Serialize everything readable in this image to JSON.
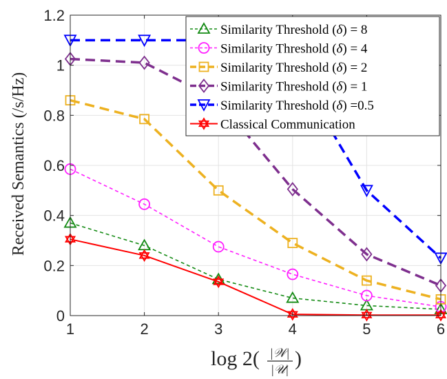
{
  "chart_data": {
    "type": "line",
    "title": "",
    "xlabel": "log 2(|𝒲|/|𝒰|)",
    "xlabel_parts": {
      "prefix": "log 2(",
      "numerator": "|𝒲|",
      "denominator": "|𝒰|",
      "suffix": ")"
    },
    "ylabel": "Received Semantics (/s/Hz)",
    "xlim": [
      1,
      6
    ],
    "ylim": [
      0,
      1.2
    ],
    "xticks": [
      "1",
      "2",
      "3",
      "4",
      "5",
      "6"
    ],
    "yticks": [
      "0",
      "0.2",
      "0.4",
      "0.6",
      "0.8",
      "1",
      "1.2"
    ],
    "grid": true,
    "legend_position": "top-right",
    "x": [
      1,
      2,
      3,
      4,
      5,
      6
    ],
    "series": [
      {
        "name": "Similarity Threshold (δ) = 8",
        "label_main": "Similarity Threshold (",
        "label_sym": "δ",
        "label_rest": ") = 8",
        "color": "#138a13",
        "marker": "triangle-up",
        "dash": "5,4",
        "width": 1.6,
        "values": [
          0.37,
          0.28,
          0.145,
          0.07,
          0.04,
          0.025
        ]
      },
      {
        "name": "Similarity Threshold (δ) = 4",
        "label_main": "Similarity Threshold (",
        "label_sym": "δ",
        "label_rest": ") = 4",
        "color": "#ff1fff",
        "marker": "circle",
        "dash": "5,4",
        "width": 1.6,
        "values": [
          0.585,
          0.445,
          0.275,
          0.165,
          0.08,
          0.035
        ]
      },
      {
        "name": "Similarity Threshold (δ) = 2",
        "label_main": "Similarity Threshold (",
        "label_sym": "δ",
        "label_rest": ") = 2",
        "color": "#edb120",
        "marker": "square",
        "dash": "14,8",
        "width": 3.5,
        "values": [
          0.86,
          0.785,
          0.5,
          0.29,
          0.14,
          0.065
        ]
      },
      {
        "name": "Similarity Threshold (δ) = 1",
        "label_main": "Similarity Threshold (",
        "label_sym": "δ",
        "label_rest": ") = 1",
        "color": "#7e2f8e",
        "marker": "diamond",
        "dash": "14,8",
        "width": 3.5,
        "values": [
          1.025,
          1.01,
          0.86,
          0.505,
          0.245,
          0.12
        ]
      },
      {
        "name": "Similarity Threshold (δ) =0.5",
        "label_main": "Similarity Threshold (",
        "label_sym": "δ",
        "label_rest": ") =0.5",
        "color": "#0000ff",
        "marker": "triangle-down",
        "dash": "14,8",
        "width": 3.5,
        "values": [
          1.1,
          1.1,
          1.1,
          1.0,
          0.5,
          0.23
        ]
      },
      {
        "name": "Classical Communication",
        "label_main": "Classical Communication",
        "label_sym": "",
        "label_rest": "",
        "color": "#ff0000",
        "marker": "hexagram",
        "dash": "",
        "width": 2,
        "values": [
          0.305,
          0.24,
          0.135,
          0.005,
          0.002,
          0.002
        ]
      }
    ]
  }
}
